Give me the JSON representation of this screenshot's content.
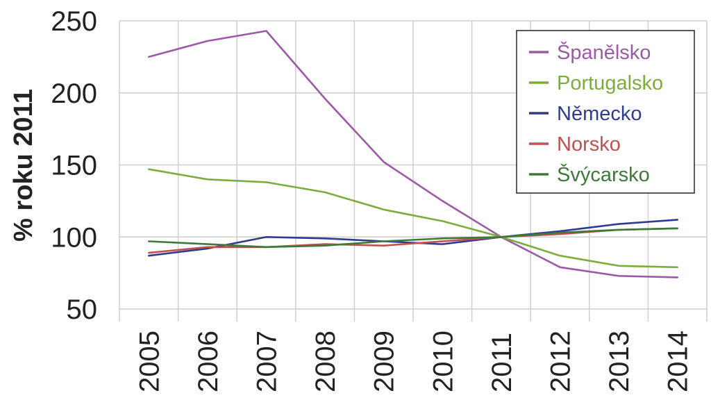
{
  "chart_data": {
    "type": "line",
    "ylabel": "% roku 2011",
    "xlabel": "",
    "title": "",
    "categories": [
      "2005",
      "2006",
      "2007",
      "2008",
      "2009",
      "2010",
      "2011",
      "2012",
      "2013",
      "2014"
    ],
    "ylim": [
      50,
      250
    ],
    "yticks": [
      "50",
      "100",
      "150",
      "200",
      "250"
    ],
    "grid": true,
    "legend_position": "top-right",
    "series": [
      {
        "name": "Španělsko",
        "color": "#9b59a6",
        "values": [
          225,
          236,
          243,
          196,
          152,
          125,
          100,
          79,
          73,
          72
        ]
      },
      {
        "name": "Portugalsko",
        "color": "#7aad3c",
        "values": [
          147,
          140,
          138,
          131,
          119,
          111,
          100,
          87,
          80,
          79
        ]
      },
      {
        "name": "Německo",
        "color": "#2f3b8c",
        "values": [
          87,
          92,
          100,
          99,
          97,
          95,
          100,
          104,
          109,
          112
        ]
      },
      {
        "name": "Norsko",
        "color": "#c0504d",
        "values": [
          89,
          93,
          93,
          95,
          94,
          97,
          100,
          102,
          105,
          106
        ]
      },
      {
        "name": "Švýcarsko",
        "color": "#3d7a3a",
        "values": [
          97,
          95,
          93,
          94,
          97,
          99,
          100,
          103,
          105,
          106
        ]
      }
    ]
  }
}
